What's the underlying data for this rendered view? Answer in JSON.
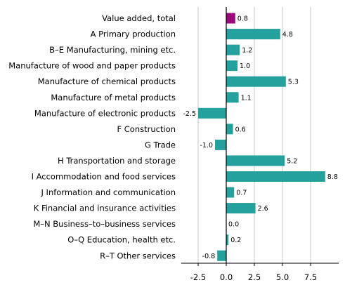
{
  "chart_data": {
    "type": "bar",
    "orientation": "horizontal",
    "title": "",
    "xlabel": "",
    "ylabel": "",
    "categories": [
      "Value added, total",
      "A Primary production",
      "B–E Manufacturing, mining etc.",
      "Manufacture of wood and paper products",
      "Manufacture of chemical products",
      "Manufacture of metal products",
      "Manufacture of electronic products",
      "F Construction",
      "G Trade",
      "H Transportation and storage",
      "I Accommodation and food services",
      "J Information and communication",
      "K Financial and insurance activities",
      "M–N Business–to–business services",
      "O–Q Education, health etc.",
      "R–T Other services"
    ],
    "values": [
      0.8,
      4.8,
      1.2,
      1.0,
      5.3,
      1.1,
      -2.5,
      0.6,
      -1.0,
      5.2,
      8.8,
      0.7,
      2.6,
      0.0,
      0.2,
      -0.8
    ],
    "value_labels": [
      "0.8",
      "4.8",
      "1.2",
      "1.0",
      "5.3",
      "1.1",
      "-2.5",
      "0.6",
      "-1.0",
      "5.2",
      "8.8",
      "0.7",
      "2.6",
      "0.0",
      "0.2",
      "-0.8"
    ],
    "xlim": [
      -4.0,
      10.0
    ],
    "xticks": [
      -2.5,
      0.0,
      2.5,
      5.0,
      7.5
    ],
    "xtick_labels": [
      "-2.5",
      "0.0",
      "2.5",
      "5.0",
      "7.5"
    ],
    "grid": true,
    "legend": "none",
    "colors": {
      "highlight": "#9b0a7d",
      "bar": "#24a19c",
      "grid": "#c8c8c8",
      "axis": "#000000"
    },
    "highlight_index": 0
  }
}
